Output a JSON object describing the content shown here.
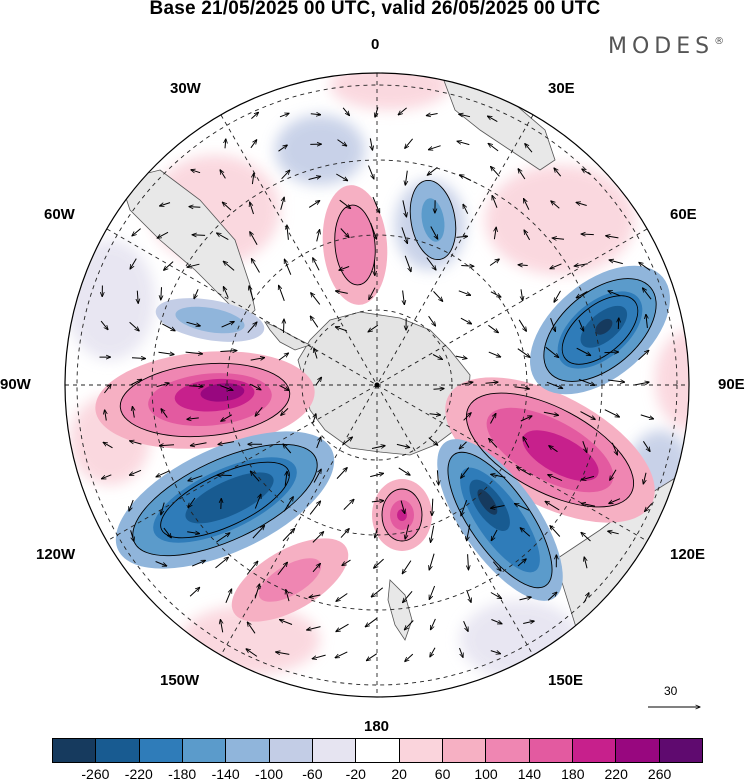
{
  "title": "Base 21/05/2025 00 UTC, valid 26/05/2025 00 UTC",
  "brand": {
    "name": "MODES",
    "mark": "®"
  },
  "meridian_labels": {
    "lon_0": "0",
    "lon_30e": "30E",
    "lon_60e": "60E",
    "lon_90e": "90E",
    "lon_120e": "120E",
    "lon_150e": "150E",
    "lon_180": "180",
    "lon_150w": "150W",
    "lon_120w": "120W",
    "lon_90w": "90W",
    "lon_60w": "60W",
    "lon_30w": "30W"
  },
  "reference_vector": {
    "label": "30"
  },
  "colorbar": {
    "colors": [
      "#163a5e",
      "#185b91",
      "#2f7cb9",
      "#5b9bcb",
      "#90b5db",
      "#c3cde6",
      "#e6e4f1",
      "#ffffff",
      "#fad4dc",
      "#f6b0c3",
      "#ef86b2",
      "#e35aa0",
      "#c7208c",
      "#98077f",
      "#5f0a6f"
    ],
    "ticks": [
      "-260",
      "-220",
      "-180",
      "-140",
      "-100",
      "-60",
      "-20",
      "20",
      "60",
      "100",
      "140",
      "180",
      "220",
      "260"
    ]
  },
  "anomaly_centers": [
    {
      "id": "p1",
      "sign": "positive",
      "level": 260,
      "color": "#98077f"
    },
    {
      "id": "p2",
      "sign": "positive",
      "level": 220,
      "color": "#c7208c"
    },
    {
      "id": "p3",
      "sign": "positive",
      "level": 180,
      "color": "#e35aa0"
    },
    {
      "id": "p4",
      "sign": "positive",
      "level": 140,
      "color": "#ef86b2"
    },
    {
      "id": "p5",
      "sign": "positive",
      "level": 100,
      "color": "#f6b0c3"
    },
    {
      "id": "n1",
      "sign": "negative",
      "level": -260,
      "color": "#163a5e"
    },
    {
      "id": "n2",
      "sign": "negative",
      "level": -220,
      "color": "#185b91"
    },
    {
      "id": "n3",
      "sign": "negative",
      "level": -180,
      "color": "#2f7cb9"
    },
    {
      "id": "n4",
      "sign": "negative",
      "level": -140,
      "color": "#5b9bcb"
    }
  ]
}
